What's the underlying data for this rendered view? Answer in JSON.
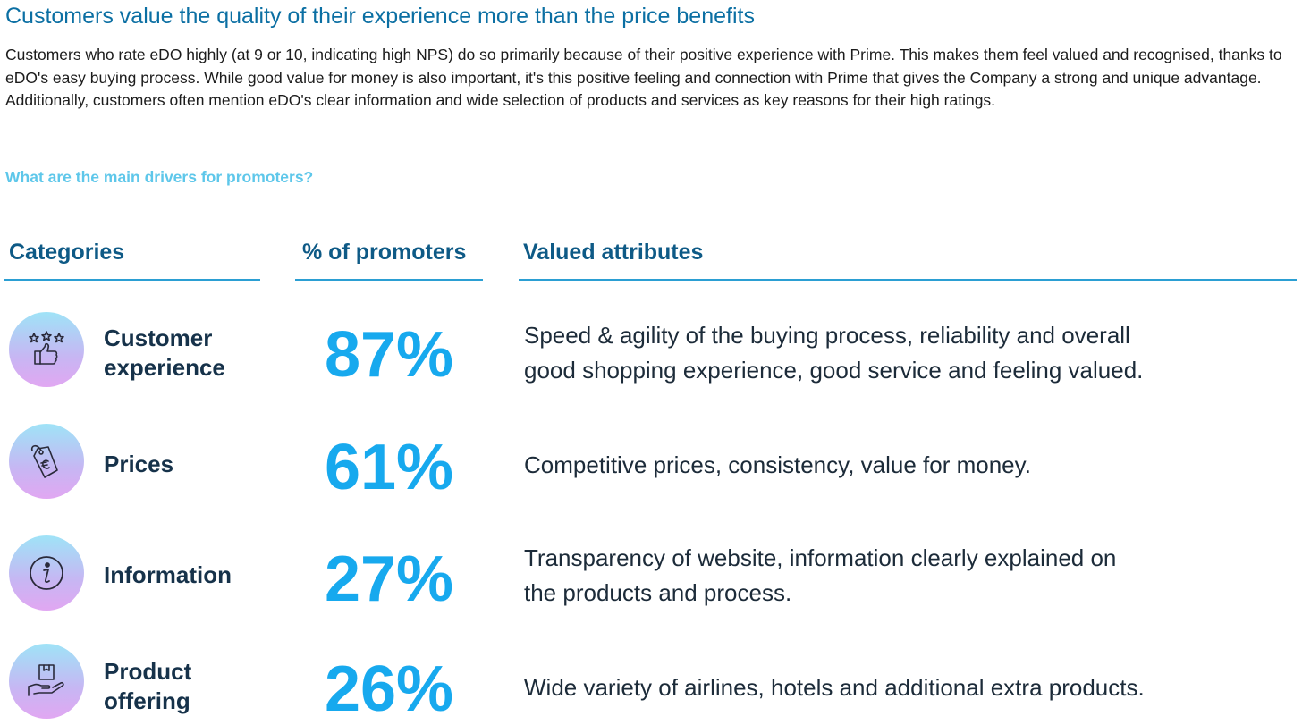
{
  "title": "Customers value the quality of their experience more than the price benefits",
  "intro": "Customers who rate eDO highly (at 9 or 10, indicating high NPS) do so primarily because of their positive experience with Prime. This makes them feel valued and recognised, thanks to eDO's easy buying process. While good value for money is also important, it's this positive feeling and connection with Prime that gives the Company a strong and unique advantage. Additionally, customers often mention eDO's clear information and wide selection of products and services as key reasons for their high ratings.",
  "question": "What are the main drivers for promoters?",
  "headers": {
    "categories": "Categories",
    "percent": "% of promoters",
    "attributes": "Valued attributes"
  },
  "rows": [
    {
      "icon": "thumbs-up-stars-icon",
      "category_line1": "Customer",
      "category_line2": "experience",
      "percent": "87%",
      "percent_value": 87,
      "attr_line1": "Speed & agility of the buying process, reliability and overall",
      "attr_line2": "good shopping experience, good service and feeling valued."
    },
    {
      "icon": "price-tag-euro-icon",
      "category_line1": "Prices",
      "percent": "61%",
      "percent_value": 61,
      "attr_line1": "Competitive prices, consistency, value for money."
    },
    {
      "icon": "info-icon",
      "category_line1": "Information",
      "percent": "27%",
      "percent_value": 27,
      "attr_line1": "Transparency of website, information clearly explained on",
      "attr_line2": "the products and process."
    },
    {
      "icon": "box-in-hand-icon",
      "category_line1": "Product",
      "category_line2": "offering",
      "percent": "26%",
      "percent_value": 26,
      "attr_line1": "Wide variety of airlines, hotels and additional extra products."
    }
  ],
  "colors": {
    "title": "#0b6fa3",
    "question": "#5ec7ea",
    "header": "#0e5a86",
    "percent": "#17a9ee",
    "rule": "#2b9fd3"
  }
}
